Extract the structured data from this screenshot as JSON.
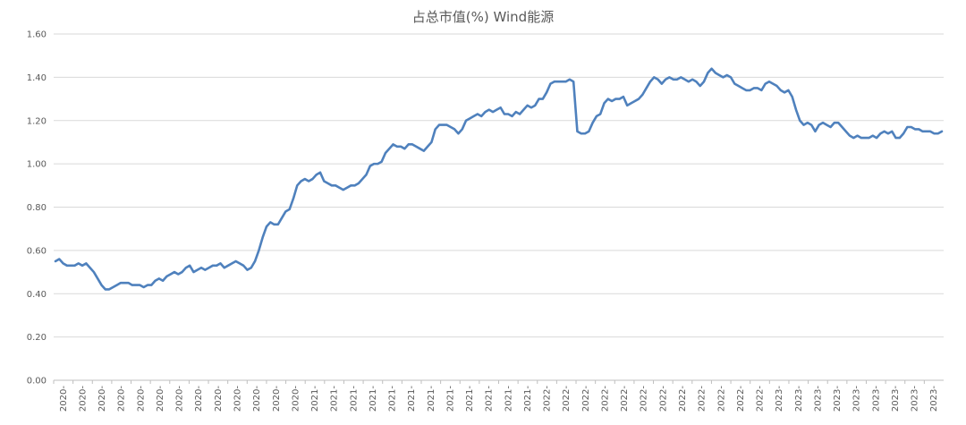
{
  "chart_data": {
    "type": "line",
    "title": "占总市值(%) Wind能源",
    "xlabel": "",
    "ylabel": "",
    "ylim": [
      0,
      1.6
    ],
    "yticks": [
      "0.00",
      "0.20",
      "0.40",
      "0.60",
      "0.80",
      "1.00",
      "1.20",
      "1.40",
      "1.60"
    ],
    "xtick_labels": [
      "2020-",
      "2020-",
      "2020-",
      "2020-",
      "2020-",
      "2020-",
      "2020-",
      "2020-",
      "2020-",
      "2020-",
      "2020-",
      "2020-",
      "2020-",
      "2021-",
      "2021-",
      "2021-",
      "2021-",
      "2021-",
      "2021-",
      "2021-",
      "2021-",
      "2021-",
      "2021-",
      "2021-",
      "2021-",
      "2022-",
      "2022-",
      "2022-",
      "2022-",
      "2022-",
      "2022-",
      "2022-",
      "2022-",
      "2022-",
      "2022-",
      "2022-",
      "2022-",
      "2023-",
      "2023-",
      "2023-",
      "2023-",
      "2023-",
      "2023-",
      "2023-",
      "2023-",
      "2023-"
    ],
    "grid": true,
    "legend": "none",
    "series_color": "#4f81bd",
    "series": [
      {
        "values": [
          0.55,
          0.56,
          0.54,
          0.53,
          0.53,
          0.53,
          0.54,
          0.53,
          0.54,
          0.52,
          0.5,
          0.47,
          0.44,
          0.42,
          0.42,
          0.43,
          0.44,
          0.45,
          0.45,
          0.45,
          0.44,
          0.44,
          0.44,
          0.43,
          0.44,
          0.44,
          0.46,
          0.47,
          0.46,
          0.48,
          0.49,
          0.5,
          0.49,
          0.5,
          0.52,
          0.53,
          0.5,
          0.51,
          0.52,
          0.51,
          0.52,
          0.53,
          0.53,
          0.54,
          0.52,
          0.53,
          0.54,
          0.55,
          0.54,
          0.53,
          0.51,
          0.52,
          0.55,
          0.6,
          0.66,
          0.71,
          0.73,
          0.72,
          0.72,
          0.75,
          0.78,
          0.79,
          0.84,
          0.9,
          0.92,
          0.93,
          0.92,
          0.93,
          0.95,
          0.96,
          0.92,
          0.91,
          0.9,
          0.9,
          0.89,
          0.88,
          0.89,
          0.9,
          0.9,
          0.91,
          0.93,
          0.95,
          0.99,
          1.0,
          1.0,
          1.01,
          1.05,
          1.07,
          1.09,
          1.08,
          1.08,
          1.07,
          1.09,
          1.09,
          1.08,
          1.07,
          1.06,
          1.08,
          1.1,
          1.16,
          1.18,
          1.18,
          1.18,
          1.17,
          1.16,
          1.14,
          1.16,
          1.2,
          1.21,
          1.22,
          1.23,
          1.22,
          1.24,
          1.25,
          1.24,
          1.25,
          1.26,
          1.23,
          1.23,
          1.22,
          1.24,
          1.23,
          1.25,
          1.27,
          1.26,
          1.27,
          1.3,
          1.3,
          1.33,
          1.37,
          1.38,
          1.38,
          1.38,
          1.38,
          1.39,
          1.38,
          1.15,
          1.14,
          1.14,
          1.15,
          1.19,
          1.22,
          1.23,
          1.28,
          1.3,
          1.29,
          1.3,
          1.3,
          1.31,
          1.27,
          1.28,
          1.29,
          1.3,
          1.32,
          1.35,
          1.38,
          1.4,
          1.39,
          1.37,
          1.39,
          1.4,
          1.39,
          1.39,
          1.4,
          1.39,
          1.38,
          1.39,
          1.38,
          1.36,
          1.38,
          1.42,
          1.44,
          1.42,
          1.41,
          1.4,
          1.41,
          1.4,
          1.37,
          1.36,
          1.35,
          1.34,
          1.34,
          1.35,
          1.35,
          1.34,
          1.37,
          1.38,
          1.37,
          1.36,
          1.34,
          1.33,
          1.34,
          1.31,
          1.25,
          1.2,
          1.18,
          1.19,
          1.18,
          1.15,
          1.18,
          1.19,
          1.18,
          1.17,
          1.19,
          1.19,
          1.17,
          1.15,
          1.13,
          1.12,
          1.13,
          1.12,
          1.12,
          1.12,
          1.13,
          1.12,
          1.14,
          1.15,
          1.14,
          1.15,
          1.12,
          1.12,
          1.14,
          1.17,
          1.17,
          1.16,
          1.16,
          1.15,
          1.15,
          1.15,
          1.14,
          1.14,
          1.15
        ]
      }
    ]
  }
}
